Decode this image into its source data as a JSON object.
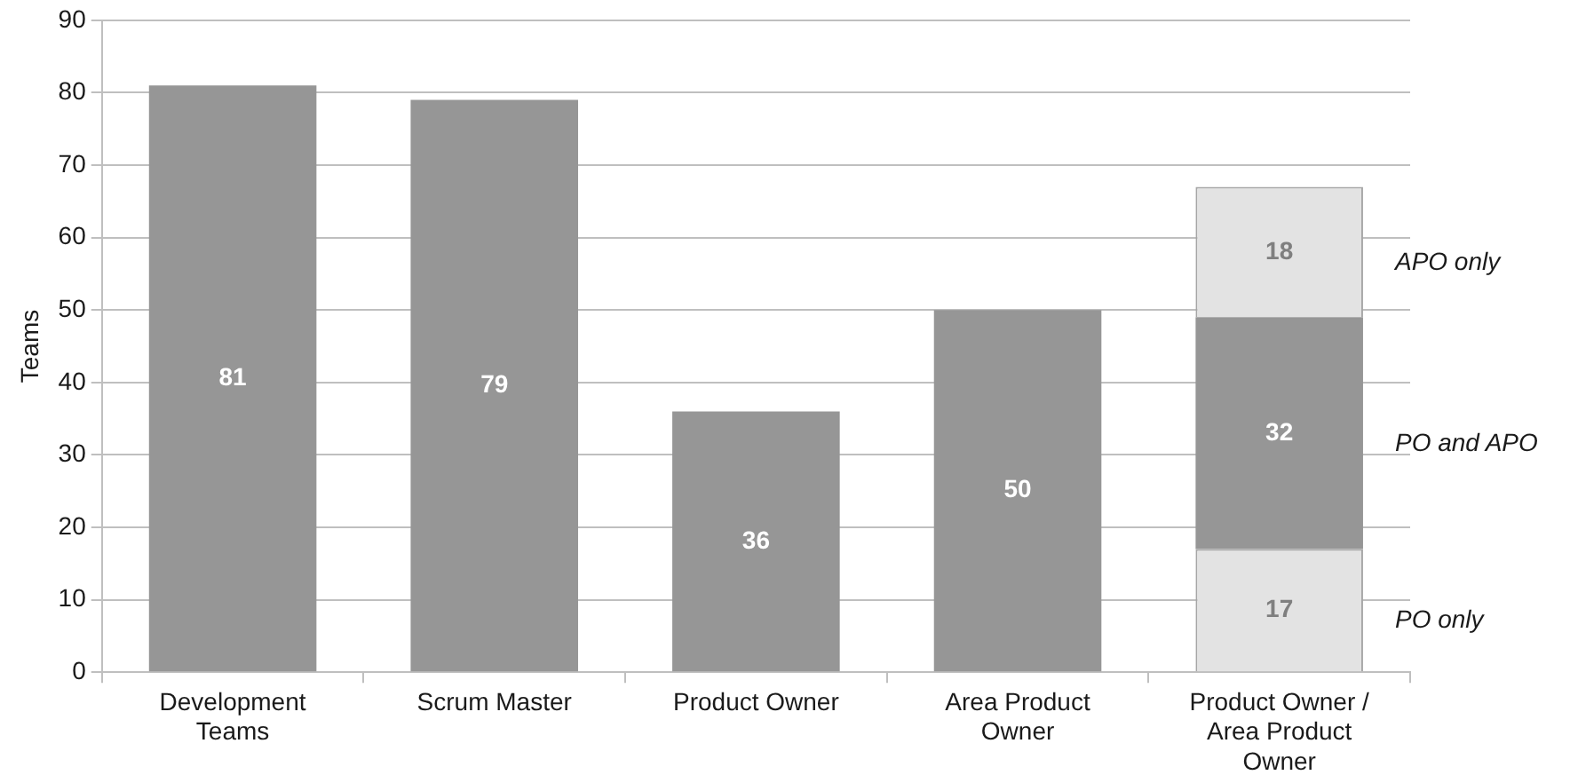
{
  "chart_data": {
    "type": "bar",
    "stacked": true,
    "ylabel": "Teams",
    "categories": [
      "Development Teams",
      "Scrum Master",
      "Product Owner",
      "Area Product Owner",
      "Product Owner / Area Product Owner"
    ],
    "series": [
      {
        "color": "#e3e3e3",
        "values": [
          null,
          null,
          null,
          null,
          17
        ]
      },
      {
        "color": "#969696",
        "values": [
          81,
          79,
          36,
          50,
          32
        ]
      },
      {
        "color": "#e3e3e3",
        "values": [
          null,
          null,
          null,
          null,
          18
        ]
      }
    ],
    "ylim": [
      0,
      90
    ],
    "yticks": [
      0,
      10,
      20,
      30,
      40,
      50,
      60,
      70,
      80,
      90
    ],
    "grid": "y",
    "data_labels": true,
    "annotations": [
      "PO only",
      "PO and APO",
      "APO only"
    ]
  }
}
